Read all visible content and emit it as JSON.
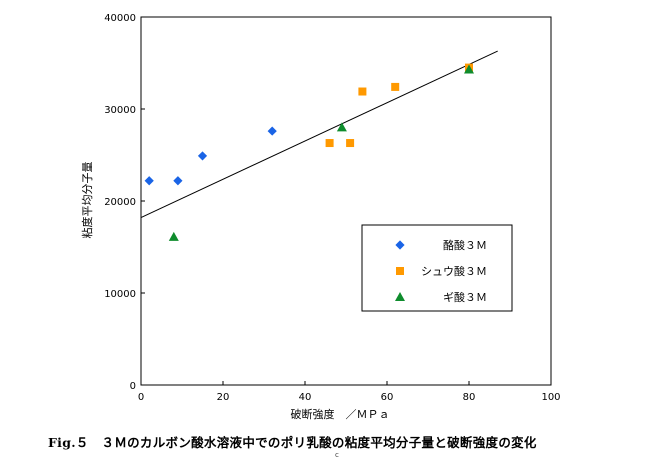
{
  "chart_data": {
    "type": "scatter",
    "xlabel": "破断強度　／ＭＰａ",
    "ylabel": "粘度平均分子量",
    "xlim": [
      0,
      100
    ],
    "ylim": [
      0,
      40000
    ],
    "x_ticks": [
      "0",
      "20",
      "40",
      "60",
      "80",
      "100"
    ],
    "y_ticks": [
      "0",
      "10000",
      "20000",
      "30000",
      "40000"
    ],
    "grid": false,
    "legend_position": "bottom-right",
    "series": [
      {
        "name": "酪酸３Ｍ",
        "marker": "diamond",
        "color": "#1a64e6",
        "points": [
          [
            2,
            22200
          ],
          [
            9,
            22200
          ],
          [
            15,
            24900
          ],
          [
            32,
            27600
          ]
        ]
      },
      {
        "name": "シュウ酸３Ｍ",
        "marker": "square",
        "color": "#ff9900",
        "points": [
          [
            46,
            26300
          ],
          [
            51,
            26300
          ],
          [
            54,
            31900
          ],
          [
            62,
            32400
          ],
          [
            80,
            34500
          ]
        ]
      },
      {
        "name": "ギ酸３Ｍ",
        "marker": "triangle",
        "color": "#0f8c2d",
        "points": [
          [
            8,
            16100
          ],
          [
            49,
            28000
          ],
          [
            80,
            34300
          ]
        ]
      }
    ],
    "trendline": {
      "color": "#000000",
      "points": [
        [
          0,
          18200
        ],
        [
          87,
          36300
        ]
      ]
    }
  },
  "caption": "Fig.５　３Ｍのカルボン酸水溶液中でのポリ乳酸の粘度平均分子量と破断強度の変化",
  "page_marker": "c"
}
